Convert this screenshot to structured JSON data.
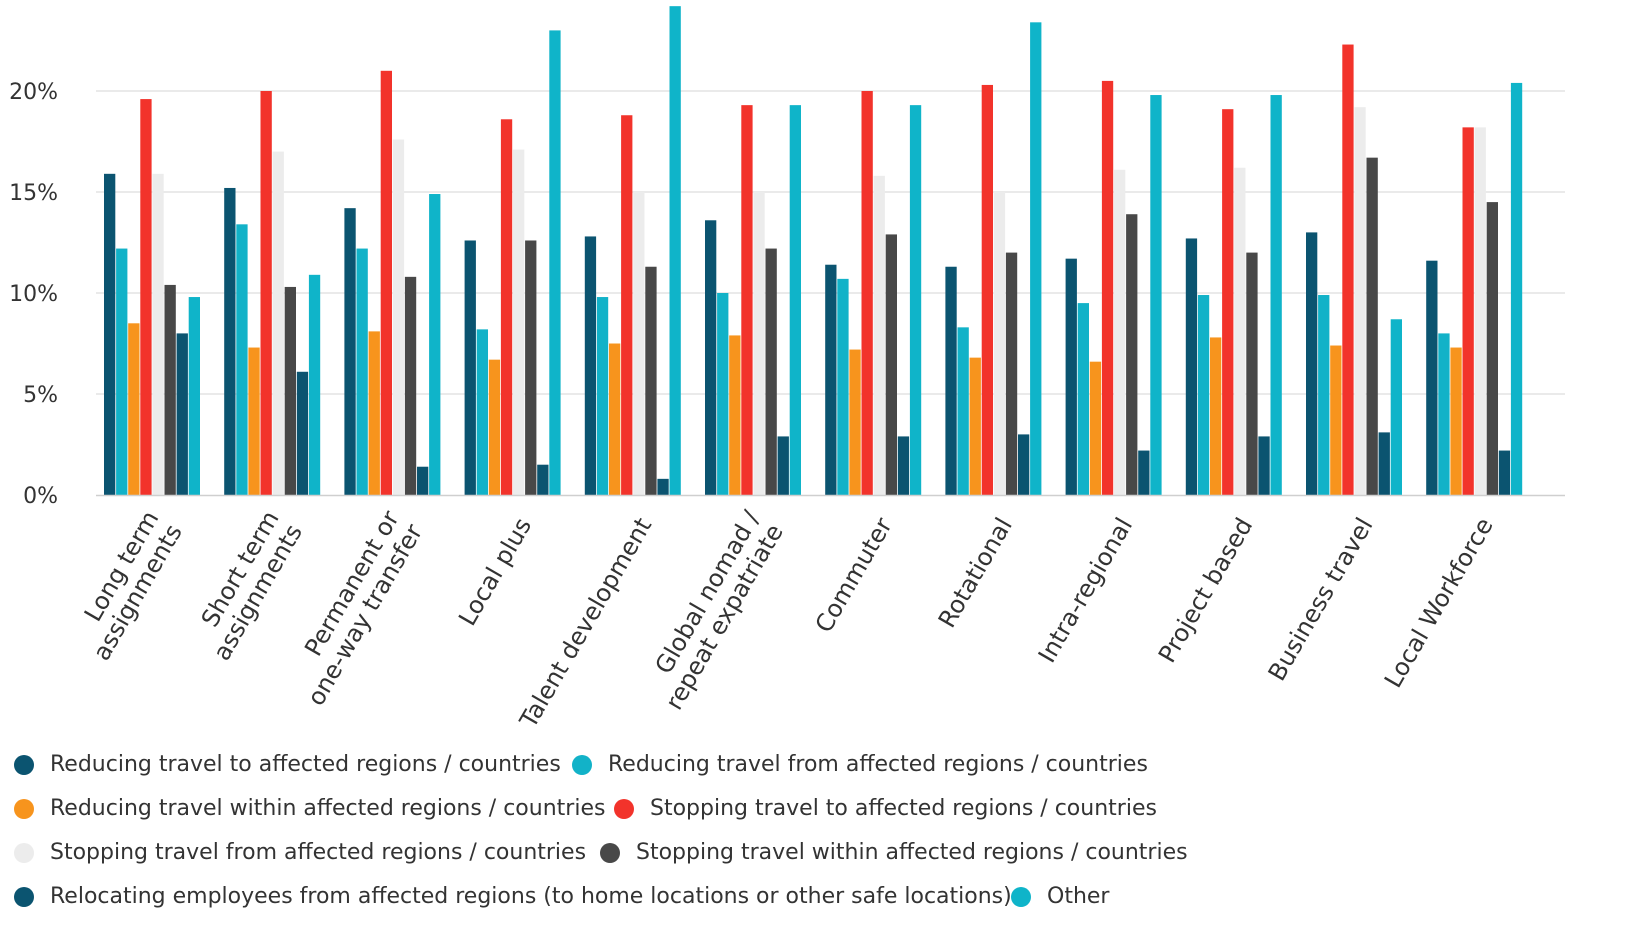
{
  "chart_data": {
    "type": "bar",
    "title": "",
    "xlabel": "",
    "ylabel": "",
    "ylim": [
      0,
      24
    ],
    "yticks": [
      "0%",
      "5%",
      "10%",
      "15%",
      "20%"
    ],
    "grid": true,
    "legend_position": "bottom",
    "categories": [
      [
        "Long term",
        "assignments"
      ],
      [
        "Short term",
        "assignments"
      ],
      [
        "Permanent or",
        "one-way transfer"
      ],
      [
        "Local plus"
      ],
      [
        "Talent development"
      ],
      [
        "Global nomad /",
        "repeat expatriate"
      ],
      [
        "Commuter"
      ],
      [
        "Rotational"
      ],
      [
        "Intra-regional"
      ],
      [
        "Project based"
      ],
      [
        "Business travel"
      ],
      [
        "Local Workforce"
      ]
    ],
    "series": [
      {
        "name": "Reducing travel to affected regions / countries",
        "color": "#0b5470",
        "values": [
          15.9,
          15.2,
          14.2,
          12.6,
          12.8,
          13.6,
          11.4,
          11.3,
          11.7,
          12.7,
          13.0,
          11.6
        ]
      },
      {
        "name": "Reducing travel from affected regions / countries",
        "color": "#12b2c8",
        "values": [
          12.2,
          13.4,
          12.2,
          8.2,
          9.8,
          10.0,
          10.7,
          8.3,
          9.5,
          9.9,
          9.9,
          8.0
        ]
      },
      {
        "name": "Reducing travel within affected regions / countries",
        "color": "#f7941d",
        "values": [
          8.5,
          7.3,
          8.1,
          6.7,
          7.5,
          7.9,
          7.2,
          6.8,
          6.6,
          7.8,
          7.4,
          7.3
        ]
      },
      {
        "name": "Stopping travel to affected regions / countries",
        "color": "#f2332b",
        "values": [
          19.6,
          20.0,
          21.0,
          18.6,
          18.8,
          19.3,
          20.0,
          20.3,
          20.5,
          19.1,
          22.3,
          18.2
        ]
      },
      {
        "name": "Stopping travel from affected regions / countries",
        "color": "#ececec",
        "values": [
          15.9,
          17.0,
          17.6,
          17.1,
          15.0,
          15.0,
          15.8,
          15.0,
          16.1,
          16.2,
          19.2,
          18.2
        ]
      },
      {
        "name": "Stopping travel within affected regions / countries",
        "color": "#484848",
        "values": [
          10.4,
          10.3,
          10.8,
          12.6,
          11.3,
          12.2,
          12.9,
          12.0,
          13.9,
          12.0,
          16.7,
          14.5
        ]
      },
      {
        "name": "Relocating employees from affected regions (to home locations or other safe locations)",
        "color": "#0b5470",
        "values": [
          8.0,
          6.1,
          1.4,
          1.5,
          0.8,
          2.9,
          2.9,
          3.0,
          2.2,
          2.9,
          3.1,
          2.2
        ]
      },
      {
        "name": "Other",
        "color": "#0fb4c9",
        "values": [
          9.8,
          10.9,
          14.9,
          23.0,
          24.2,
          19.3,
          19.3,
          23.4,
          19.8,
          19.8,
          8.7,
          20.4
        ]
      }
    ]
  }
}
